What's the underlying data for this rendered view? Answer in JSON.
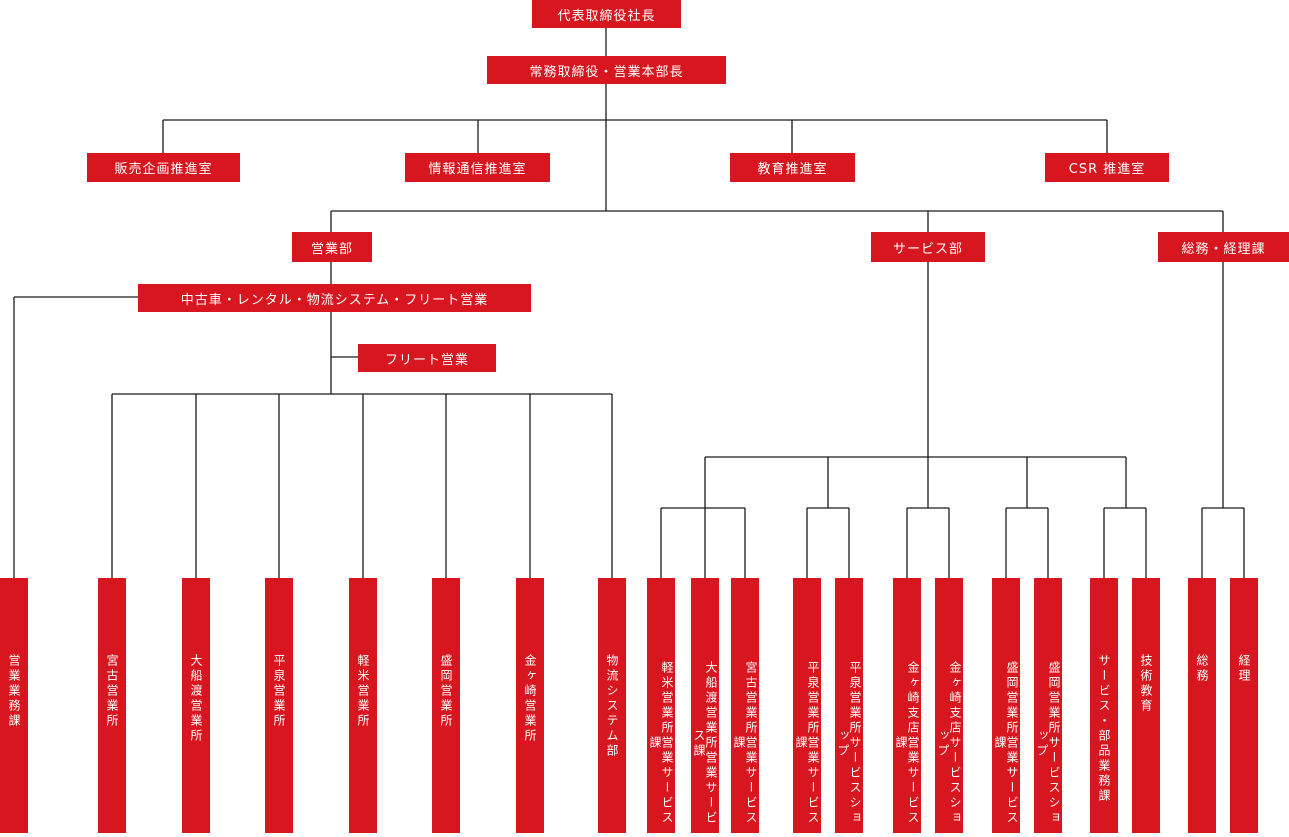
{
  "accent_color": "#d7161f",
  "line_color": "#1a1a1a",
  "top": {
    "president": "代表取締役社長",
    "managing_director": "常務取締役・営業本部長"
  },
  "staff": {
    "sales_planning": "販売企画推進室",
    "it": "情報通信推進室",
    "education": "教育推進室",
    "csr": "CSR 推進室"
  },
  "departments": {
    "sales": "営業部",
    "service": "サービス部",
    "general_affairs": "総務・経理課"
  },
  "sales_sections": {
    "used_car": "中古車・レンタル・物流システム・フリート営業",
    "fleet": "フリート営業"
  },
  "units": {
    "eigyo_gyomu": "営業業務課",
    "miyako_office": "宮古営業所",
    "ofunato_office": "大船渡営業所",
    "hiraizumi_office": "平泉営業所",
    "karumai_office": "軽米営業所",
    "morioka_office": "盛岡営業所",
    "kanegasaki_office": "金ヶ崎営業所",
    "logistics": "物流システム部",
    "karumai_service": "軽米営業所営業サービス課",
    "ofunato_service": "大船渡営業所営業サービス課",
    "miyako_service": "宮古営業所営業サービス課",
    "hiraizumi_service": "平泉営業所営業サービス課",
    "hiraizumi_shop": "平泉営業所サービスショップ",
    "kanegasaki_service": "金ヶ崎支店営業サービス課",
    "kanegasaki_shop": "金ヶ崎支店サービスショップ",
    "morioka_service": "盛岡営業所営業サービス課",
    "morioka_shop": "盛岡営業所サービスショップ",
    "service_parts": "サービス・部品業務課",
    "tech_education": "技術教育",
    "general": "総務",
    "accounting": "経理"
  }
}
